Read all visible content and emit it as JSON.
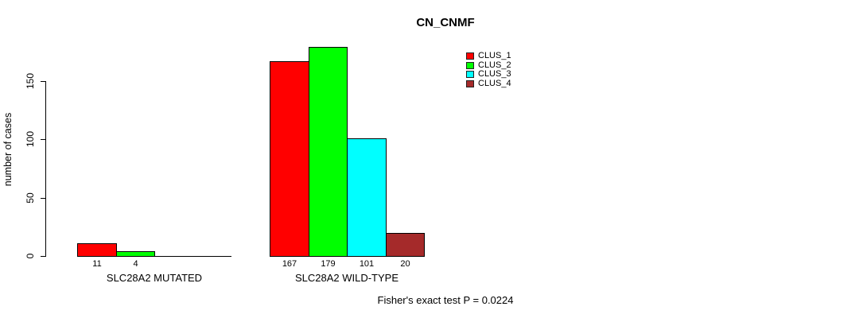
{
  "title": "CN_CNMF",
  "footer": "Fisher's exact test P = 0.0224",
  "chart_data": {
    "type": "bar",
    "title": "CN_CNMF",
    "xlabel": "",
    "ylabel": "number of cases",
    "ylim": [
      0,
      150
    ],
    "yticks": [
      "0",
      "50",
      "100",
      "150"
    ],
    "ytick_values": [
      0,
      50,
      100,
      150
    ],
    "grid": false,
    "legend_position": "top-right",
    "series": [
      {
        "name": "CLUS_1",
        "color": "#ff0000"
      },
      {
        "name": "CLUS_2",
        "color": "#00ff00"
      },
      {
        "name": "CLUS_3",
        "color": "#00ffff"
      },
      {
        "name": "CLUS_4",
        "color": "#a52a2a"
      }
    ],
    "groups": [
      {
        "label": "SLC28A2 MUTATED",
        "values": [
          11,
          4,
          0,
          0
        ],
        "bar_labels": [
          "11",
          "4",
          "",
          ""
        ]
      },
      {
        "label": "SLC28A2 WILD-TYPE",
        "values": [
          167,
          179,
          101,
          20
        ],
        "bar_labels": [
          "167",
          "179",
          "101",
          "20"
        ]
      }
    ],
    "annotation": "Fisher's exact test P = 0.0224"
  }
}
